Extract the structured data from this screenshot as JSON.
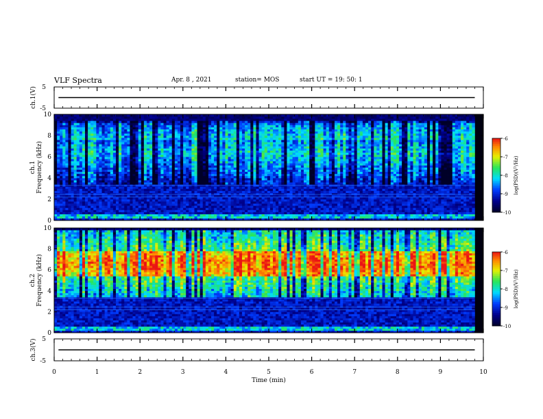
{
  "header": {
    "title": "VLF Spectra",
    "date": "Apr. 8 , 2021",
    "station": "station= MOS",
    "start": "start UT = 19: 50: 1"
  },
  "chart_data": [
    {
      "type": "line",
      "name": "waveform-ch1",
      "ylabel": "ch.1(V)",
      "ylim": [
        -5,
        5
      ],
      "yticks": [
        5,
        -5
      ],
      "xlim": [
        0,
        10
      ],
      "series": [
        {
          "x": [
            0.1,
            9.8
          ],
          "y": [
            0,
            0
          ]
        }
      ]
    },
    {
      "type": "heatmap",
      "name": "spectrogram-ch1",
      "ylabel": "ch.1 Frequency (kHz)",
      "ylim": [
        0,
        10
      ],
      "yticks": [
        0,
        2,
        4,
        6,
        8,
        10
      ],
      "xlim": [
        0,
        10
      ],
      "data_end_min": 9.8,
      "bands_khz": [
        [
          0.3,
          0.6
        ],
        [
          3.5,
          9.3
        ]
      ],
      "colorbar": {
        "label": "log(PSD)(V²/Hz)",
        "range": [
          -10,
          -6
        ],
        "ticks": [
          -6,
          -7,
          -8,
          -9,
          -10
        ]
      }
    },
    {
      "type": "heatmap",
      "name": "spectrogram-ch2",
      "ylabel": "ch.2 Frequency (kHz)",
      "ylim": [
        0,
        10
      ],
      "yticks": [
        0,
        2,
        4,
        6,
        8,
        10
      ],
      "xlim": [
        0,
        10
      ],
      "data_end_min": 9.8,
      "bands_khz": [
        [
          0.3,
          0.6
        ],
        [
          3.5,
          9.8
        ]
      ],
      "peak_band_khz": [
        5.5,
        7.8
      ],
      "colorbar": {
        "label": "log(PSD)(V²/Hz)",
        "range": [
          -10,
          -6
        ],
        "ticks": [
          -6,
          -7,
          -8,
          -9,
          -10
        ]
      }
    },
    {
      "type": "line",
      "name": "waveform-ch3",
      "ylabel": "ch.3(V)",
      "ylim": [
        -5,
        5
      ],
      "yticks": [
        5,
        -5
      ],
      "xlim": [
        0,
        10
      ],
      "xlabel": "Time (min)",
      "xticks": [
        0,
        1,
        2,
        3,
        4,
        5,
        6,
        7,
        8,
        9,
        10
      ],
      "series": [
        {
          "x": [
            0.1,
            9.8
          ],
          "y": [
            0,
            0
          ]
        }
      ]
    }
  ]
}
